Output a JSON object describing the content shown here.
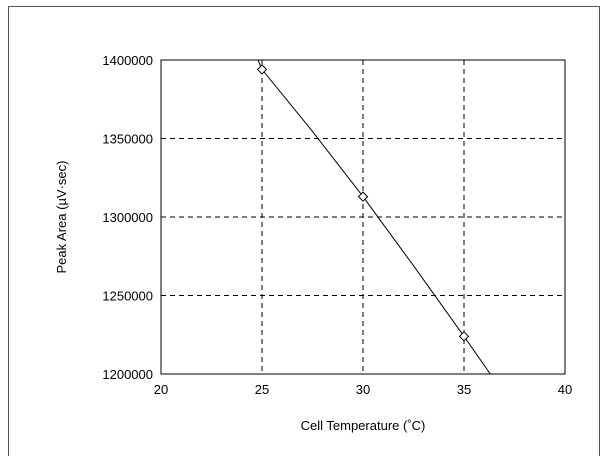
{
  "chart_data": {
    "type": "line",
    "title": "",
    "xlabel": "Cell Temperature (˚C)",
    "ylabel": "Peak Area (µV·sec)",
    "xlim": [
      20,
      40
    ],
    "ylim": [
      1200000,
      1400000
    ],
    "xticks": [
      20,
      25,
      30,
      35,
      40
    ],
    "yticks": [
      1200000,
      1250000,
      1300000,
      1350000,
      1400000
    ],
    "xtick_labels": [
      "20",
      "25",
      "30",
      "35",
      "40"
    ],
    "ytick_labels": [
      "1200000",
      "1250000",
      "1300000",
      "1350000",
      "1400000"
    ],
    "grid": true,
    "grid_style": "dashed",
    "series": [
      {
        "markers": "open-diamond",
        "points": [
          {
            "x": 25,
            "y": 1394000
          },
          {
            "x": 30,
            "y": 1313000
          },
          {
            "x": 35,
            "y": 1224000
          }
        ],
        "curve": [
          {
            "x": 24.8,
            "y": 1400000
          },
          {
            "x": 25,
            "y": 1394000
          },
          {
            "x": 27.5,
            "y": 1354500
          },
          {
            "x": 30,
            "y": 1313000
          },
          {
            "x": 32.5,
            "y": 1269000
          },
          {
            "x": 35,
            "y": 1224000
          },
          {
            "x": 36.3,
            "y": 1200000
          }
        ]
      }
    ],
    "colors": {
      "line": "#000000",
      "grid": "#000000",
      "background": "#ffffff"
    }
  }
}
